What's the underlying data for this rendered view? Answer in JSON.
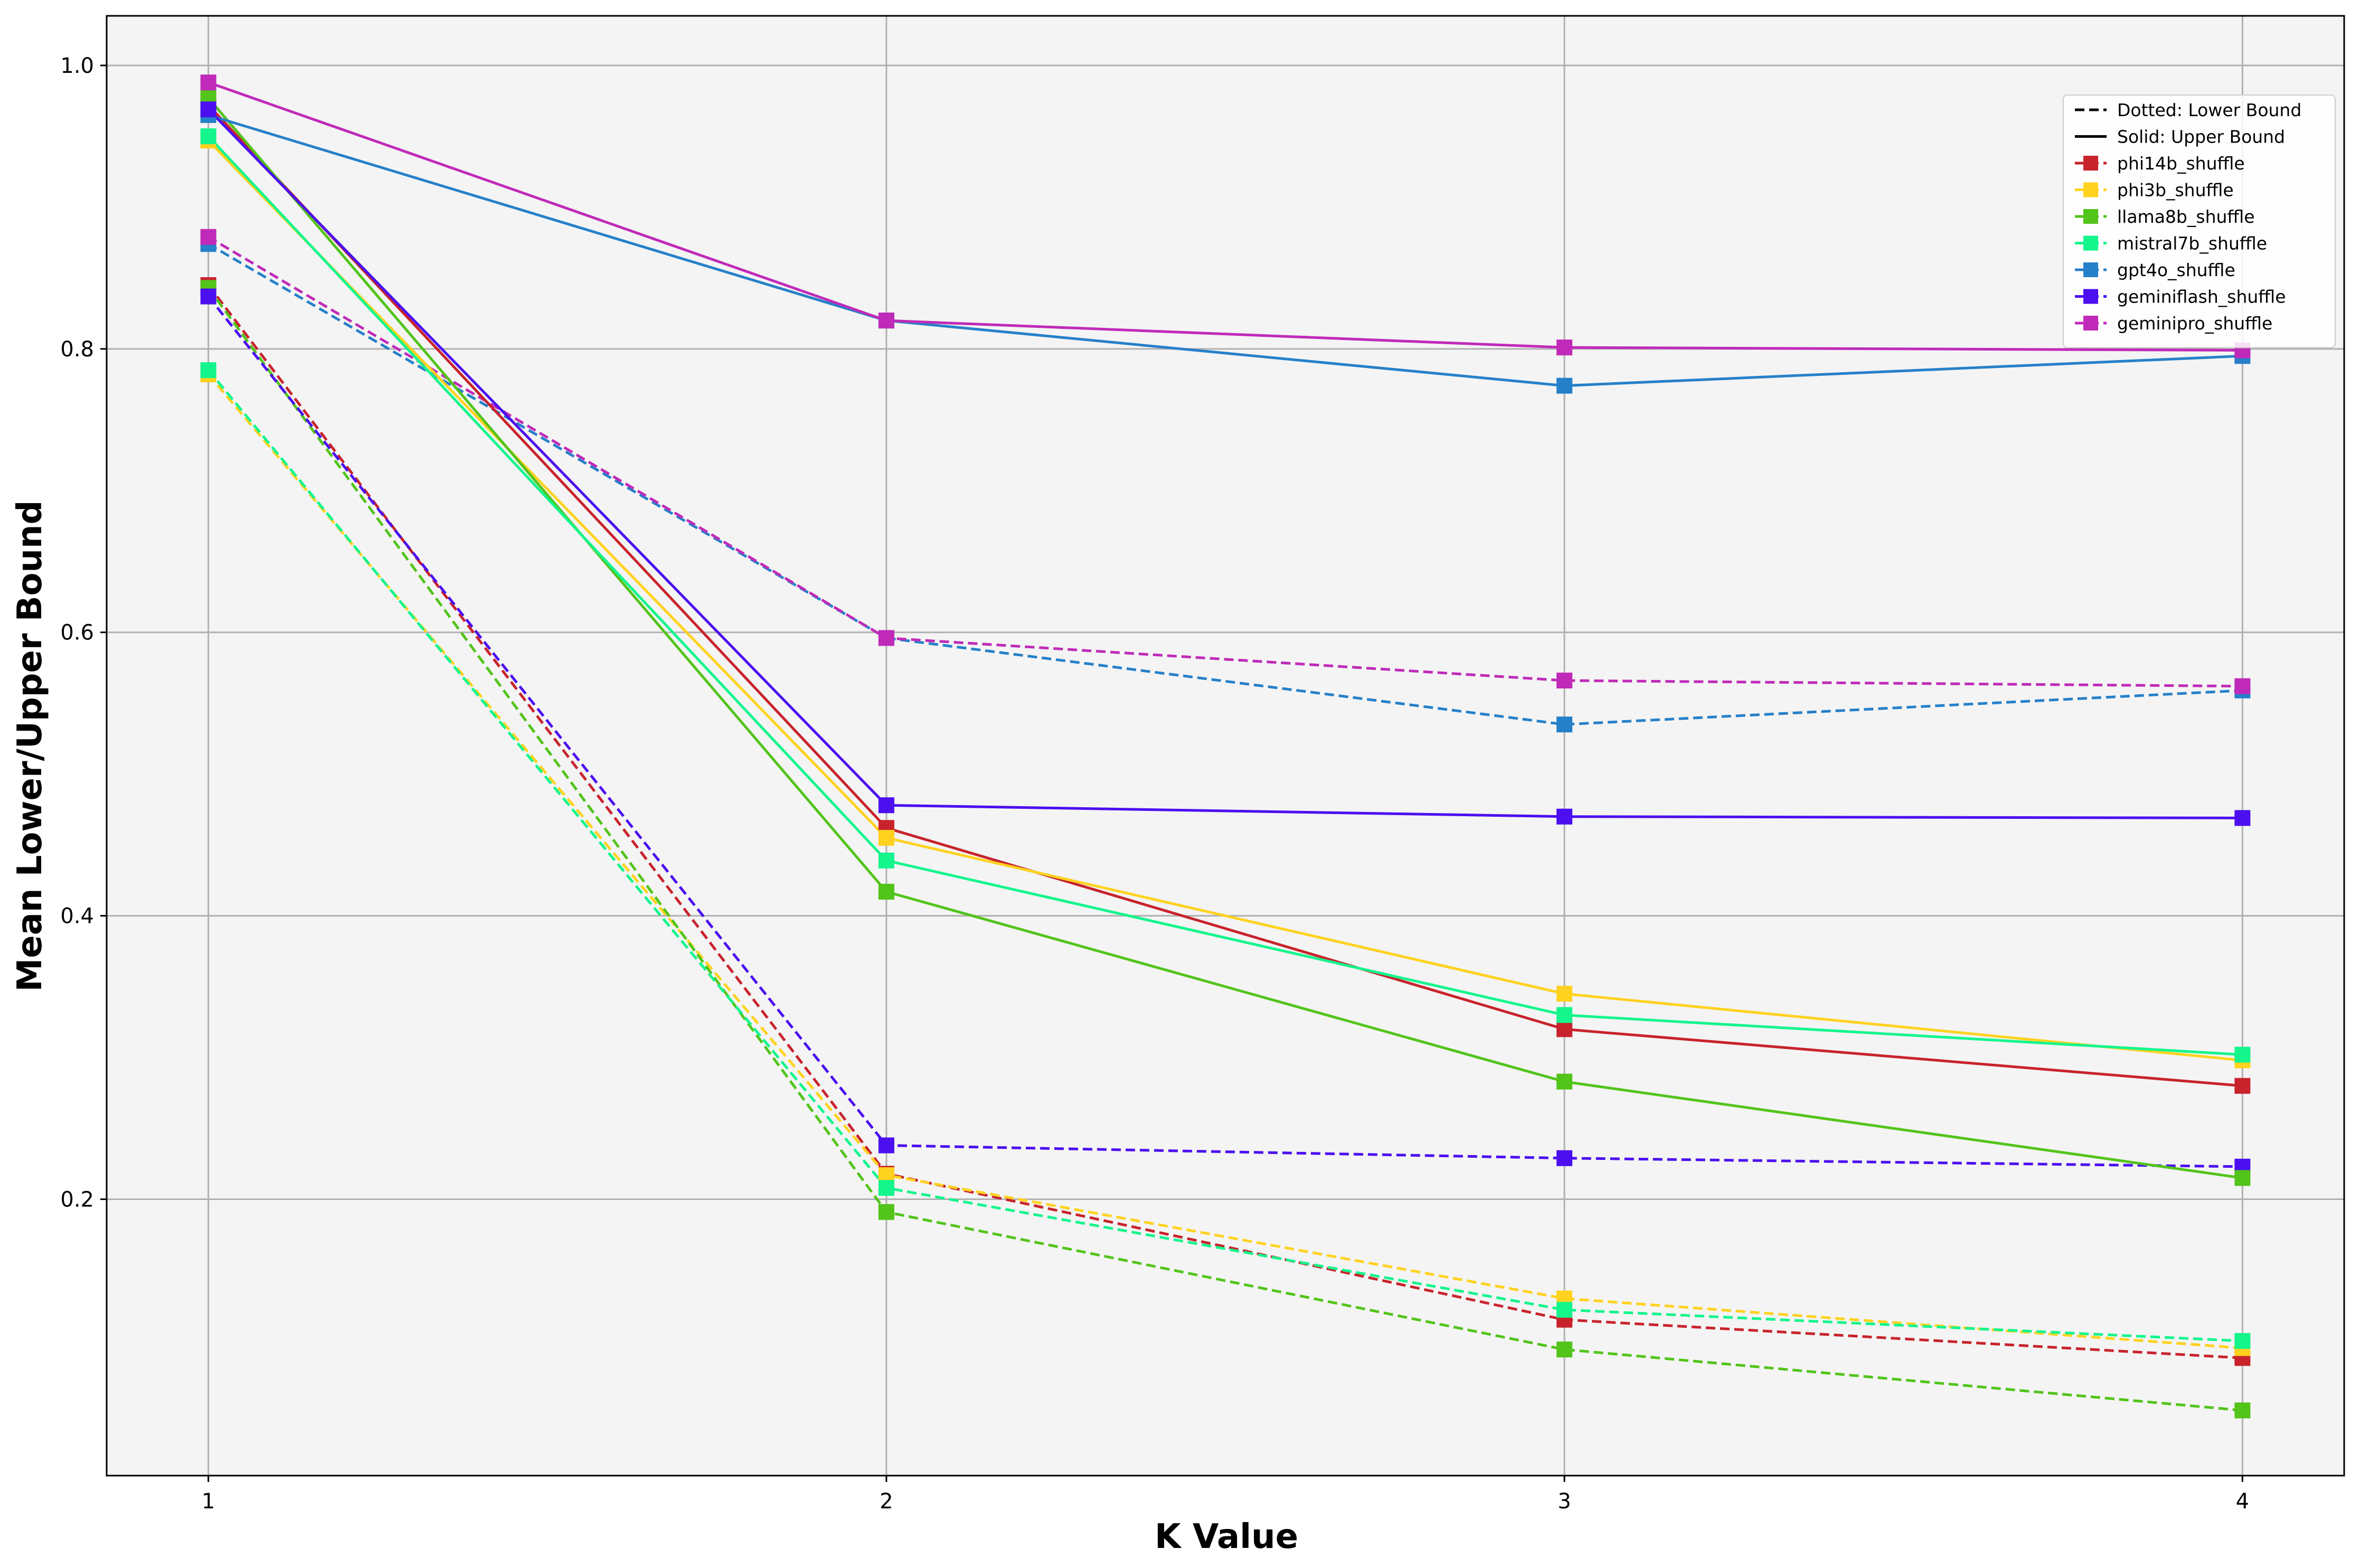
{
  "chart_data": {
    "type": "line",
    "title": "",
    "xlabel": "K Value",
    "ylabel": "Mean Lower/Upper Bound",
    "x": [
      1,
      2,
      3,
      4
    ],
    "x_ticks": [
      "1",
      "2",
      "3",
      "4"
    ],
    "xlim": [
      0.85,
      4.15
    ],
    "y_ticks": [
      "0.2",
      "0.4",
      "0.6",
      "0.8",
      "1.0"
    ],
    "ylim": [
      0.005,
      1.035
    ],
    "grid": true,
    "background": "#f4f4f4",
    "legend_position": "upper-right",
    "legend_style_entries": [
      {
        "label": "Dotted: Lower Bound",
        "style": "dashed"
      },
      {
        "label": "Solid: Upper Bound",
        "style": "solid"
      }
    ],
    "series": [
      {
        "name": "phi14b_shuffle",
        "color": "#c8232c",
        "upper": [
          0.972,
          0.462,
          0.32,
          0.28
        ],
        "lower": [
          0.845,
          0.218,
          0.115,
          0.088
        ]
      },
      {
        "name": "phi3b_shuffle",
        "color": "#ffd21f",
        "upper": [
          0.947,
          0.455,
          0.345,
          0.298
        ],
        "lower": [
          0.782,
          0.217,
          0.13,
          0.095
        ]
      },
      {
        "name": "llama8b_shuffle",
        "color": "#52c41a",
        "upper": [
          0.977,
          0.417,
          0.283,
          0.215
        ],
        "lower": [
          0.843,
          0.191,
          0.094,
          0.051
        ]
      },
      {
        "name": "mistral7b_shuffle",
        "color": "#14f58c",
        "upper": [
          0.95,
          0.439,
          0.33,
          0.302
        ],
        "lower": [
          0.785,
          0.208,
          0.122,
          0.1
        ]
      },
      {
        "name": "gpt4o_shuffle",
        "color": "#2680c9",
        "upper": [
          0.965,
          0.82,
          0.774,
          0.795
        ],
        "lower": [
          0.874,
          0.596,
          0.535,
          0.559
        ]
      },
      {
        "name": "geminiflash_shuffle",
        "color": "#4b0ff0",
        "upper": [
          0.969,
          0.478,
          0.47,
          0.469
        ],
        "lower": [
          0.837,
          0.238,
          0.229,
          0.223
        ]
      },
      {
        "name": "geminipro_shuffle",
        "color": "#c02ab8",
        "upper": [
          0.988,
          0.82,
          0.801,
          0.799
        ],
        "lower": [
          0.879,
          0.596,
          0.566,
          0.562
        ]
      }
    ]
  }
}
